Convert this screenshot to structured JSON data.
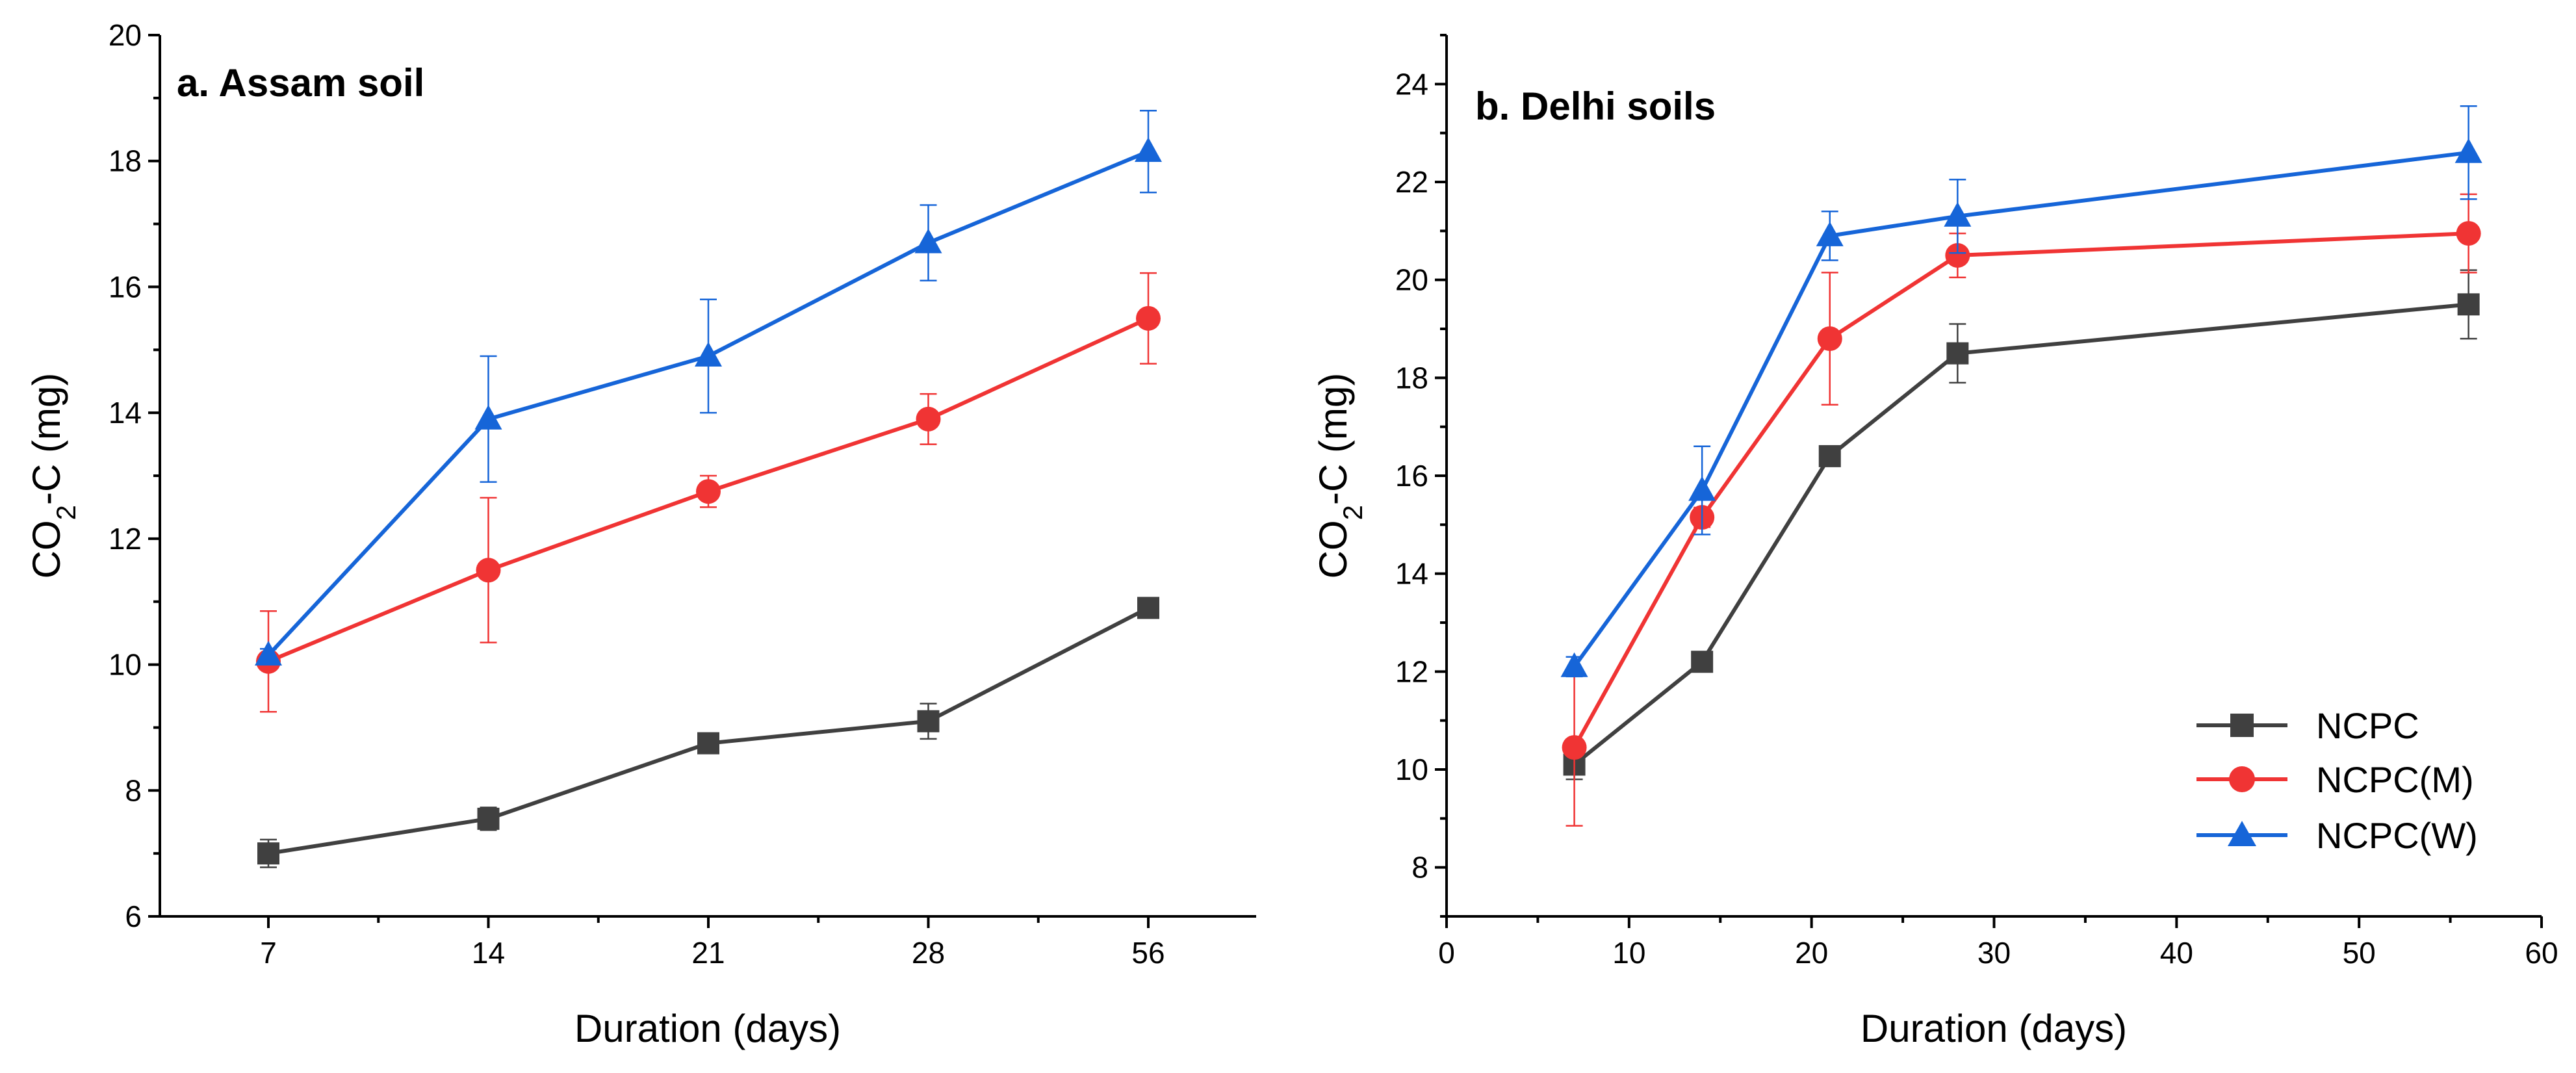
{
  "chart_data": [
    {
      "type": "line",
      "title": "a. Assam soil",
      "xlabel": "Duration (days)",
      "ylabel_main": "CO",
      "ylabel_sub": "2",
      "ylabel_rest": "-C (mg)",
      "x_scale": "categorical",
      "categories": [
        "7",
        "14",
        "21",
        "28",
        "56"
      ],
      "ylim": [
        6,
        20
      ],
      "yticks": [
        6,
        8,
        10,
        12,
        14,
        16,
        18,
        20
      ],
      "series": [
        {
          "name": "NCPC",
          "marker": "square",
          "color": "#404040",
          "values": [
            7.0,
            7.55,
            8.75,
            9.1,
            10.9
          ],
          "errors": [
            0.22,
            0.18,
            0.15,
            0.28,
            0.12
          ]
        },
        {
          "name": "NCPC(M)",
          "marker": "circle",
          "color": "#f03434",
          "values": [
            10.05,
            11.5,
            12.75,
            13.9,
            15.5
          ],
          "errors": [
            0.8,
            1.15,
            0.25,
            0.4,
            0.72
          ]
        },
        {
          "name": "NCPC(W)",
          "marker": "triangle",
          "color": "#1665d8",
          "values": [
            10.15,
            13.9,
            14.9,
            16.7,
            18.15
          ],
          "errors": [
            0.1,
            1.0,
            0.9,
            0.6,
            0.65
          ]
        }
      ]
    },
    {
      "type": "line",
      "title": "b. Delhi soils",
      "xlabel": "Duration (days)",
      "ylabel_main": "CO",
      "ylabel_sub": "2",
      "ylabel_rest": "-C (mg)",
      "x_scale": "linear",
      "xlim": [
        0,
        60
      ],
      "xticks": [
        0,
        10,
        20,
        30,
        40,
        50,
        60
      ],
      "ylim": [
        7,
        25
      ],
      "yticks": [
        8,
        10,
        12,
        14,
        16,
        18,
        20,
        22,
        24
      ],
      "x": [
        7,
        14,
        21,
        28,
        56
      ],
      "legend_position": "bottom-right",
      "series": [
        {
          "name": "NCPC",
          "marker": "square",
          "color": "#404040",
          "values": [
            10.1,
            12.2,
            16.4,
            18.5,
            19.5
          ],
          "errors": [
            0.3,
            0.15,
            0.15,
            0.6,
            0.7
          ]
        },
        {
          "name": "NCPC(M)",
          "marker": "circle",
          "color": "#f03434",
          "values": [
            10.45,
            15.15,
            18.8,
            20.5,
            20.95
          ],
          "errors": [
            1.6,
            0.2,
            1.35,
            0.45,
            0.8
          ]
        },
        {
          "name": "NCPC(W)",
          "marker": "triangle",
          "color": "#1665d8",
          "values": [
            12.1,
            15.7,
            20.9,
            21.3,
            22.6
          ],
          "errors": [
            0.2,
            0.9,
            0.5,
            0.75,
            0.95
          ]
        }
      ]
    }
  ]
}
